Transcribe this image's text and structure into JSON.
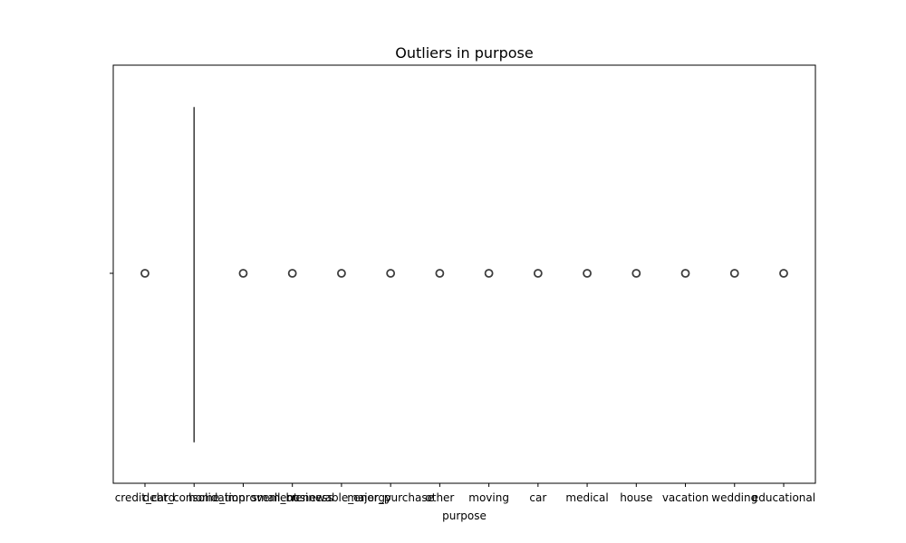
{
  "chart_data": {
    "type": "box",
    "title": "Outliers in purpose",
    "xlabel": "purpose",
    "ylabel": "",
    "orientation": "horizontal",
    "categories": [
      "credit_card",
      "debt_consolidation",
      "home_improvement",
      "small_business",
      "renewable_energy",
      "major_purchase",
      "other",
      "moving",
      "car",
      "medical",
      "house",
      "vacation",
      "wedding",
      "educational"
    ],
    "box": {
      "whisker_low": "debt_consolidation",
      "q1": "debt_consolidation",
      "median": "debt_consolidation",
      "q3": "debt_consolidation",
      "whisker_high": "debt_consolidation"
    },
    "outliers": [
      "credit_card",
      "home_improvement",
      "small_business",
      "renewable_energy",
      "major_purchase",
      "other",
      "moving",
      "car",
      "medical",
      "house",
      "vacation",
      "wedding",
      "educational"
    ],
    "y_tick_labels": [
      ""
    ],
    "colors": {
      "box_line": "#3d3d3d",
      "outlier_edge": "#3d3d3d",
      "axis": "#000000"
    }
  }
}
